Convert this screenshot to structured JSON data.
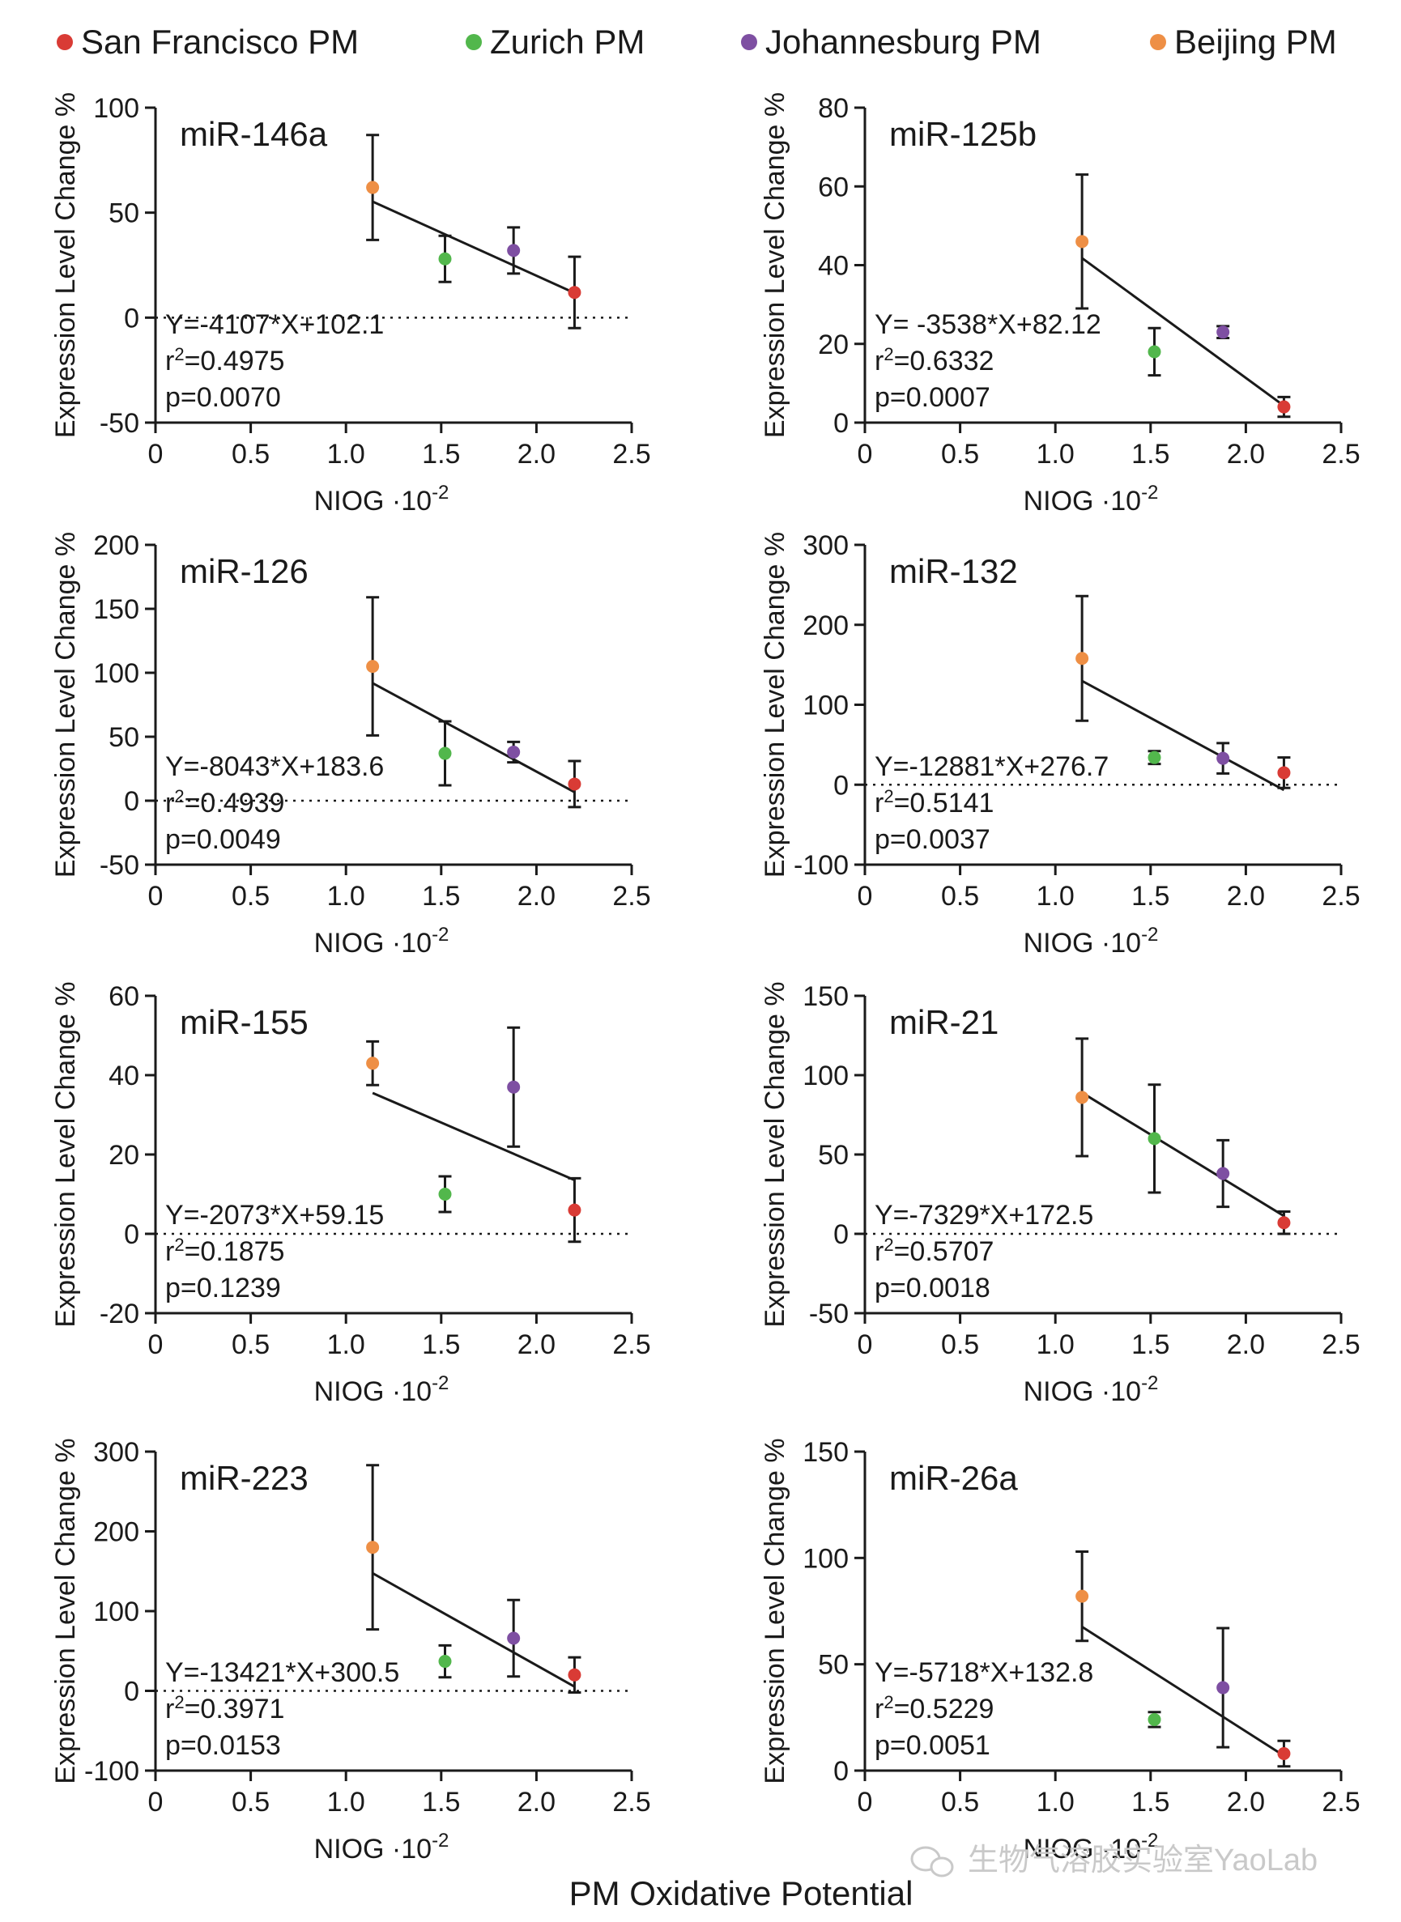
{
  "colors": {
    "san_francisco": "#d93b35",
    "zurich": "#52b74c",
    "johannesburg": "#7e4fa2",
    "beijing": "#ee8f45",
    "axis": "#1a1a1a",
    "watermark": "#c9c9c9"
  },
  "legend": [
    {
      "label": "San Francisco PM",
      "color_key": "san_francisco"
    },
    {
      "label": "Zurich PM",
      "color_key": "zurich"
    },
    {
      "label": "Johannesburg PM",
      "color_key": "johannesburg"
    },
    {
      "label": "Beijing PM",
      "color_key": "beijing"
    }
  ],
  "x_axis_title": "PM Oxidative Potential",
  "watermark": {
    "text": "生物气溶胶实验室YaoLab",
    "icon": "wechat-icon"
  },
  "chart_data": [
    {
      "type": "scatter",
      "title": "miR-146a",
      "xlabel": "NIOG ·10",
      "xlabel_sup": "-2",
      "ylabel": "Expression Level Change %",
      "xlim": [
        0,
        2.5
      ],
      "ylim": [
        -50,
        100
      ],
      "xticks": [
        "0",
        "0.5",
        "1.0",
        "1.5",
        "2.0",
        "2.5"
      ],
      "xtick_values": [
        0,
        0.5,
        1.0,
        1.5,
        2.0,
        2.5
      ],
      "yticks": [
        "-50",
        "0",
        "50",
        "100"
      ],
      "ytick_values": [
        -50,
        0,
        50,
        100
      ],
      "dotted_zero_line": true,
      "points": [
        {
          "city": "beijing",
          "x": 1.14,
          "y": 62,
          "err": 25
        },
        {
          "city": "zurich",
          "x": 1.52,
          "y": 28,
          "err": 11
        },
        {
          "city": "johannesburg",
          "x": 1.88,
          "y": 32,
          "err": 11
        },
        {
          "city": "san_francisco",
          "x": 2.2,
          "y": 12,
          "err": 17
        }
      ],
      "fit": {
        "slope": -4107,
        "intercept": 102.1,
        "x_range": [
          1.14,
          2.2
        ]
      },
      "annotation": {
        "equation": "Y=-4107*X+102.1",
        "r2_prefix": "r",
        "r2_sup": "2",
        "r2_value": "=0.4975",
        "p": "p=0.0070"
      }
    },
    {
      "type": "scatter",
      "title": "miR-125b",
      "xlabel": "NIOG ·10",
      "xlabel_sup": "-2",
      "ylabel": "Expression Level Change %",
      "xlim": [
        0,
        2.5
      ],
      "ylim": [
        0,
        80
      ],
      "xticks": [
        "0",
        "0.5",
        "1.0",
        "1.5",
        "2.0",
        "2.5"
      ],
      "xtick_values": [
        0,
        0.5,
        1.0,
        1.5,
        2.0,
        2.5
      ],
      "yticks": [
        "0",
        "20",
        "40",
        "60",
        "80"
      ],
      "ytick_values": [
        0,
        20,
        40,
        60,
        80
      ],
      "dotted_zero_line": false,
      "points": [
        {
          "city": "beijing",
          "x": 1.14,
          "y": 46,
          "err": 17
        },
        {
          "city": "zurich",
          "x": 1.52,
          "y": 18,
          "err": 6
        },
        {
          "city": "johannesburg",
          "x": 1.88,
          "y": 23,
          "err": 1.5
        },
        {
          "city": "san_francisco",
          "x": 2.2,
          "y": 4,
          "err": 2.5
        }
      ],
      "fit": {
        "slope": -3538,
        "intercept": 82.12,
        "x_range": [
          1.14,
          2.2
        ]
      },
      "annotation": {
        "equation": "Y= -3538*X+82.12",
        "r2_prefix": "r",
        "r2_sup": "2",
        "r2_value": "=0.6332",
        "p": "p=0.0007"
      }
    },
    {
      "type": "scatter",
      "title": "miR-126",
      "xlabel": "NIOG ·10",
      "xlabel_sup": "-2",
      "ylabel": "Expression Level Change %",
      "xlim": [
        0,
        2.5
      ],
      "ylim": [
        -50,
        200
      ],
      "xticks": [
        "0",
        "0.5",
        "1.0",
        "1.5",
        "2.0",
        "2.5"
      ],
      "xtick_values": [
        0,
        0.5,
        1.0,
        1.5,
        2.0,
        2.5
      ],
      "yticks": [
        "-50",
        "0",
        "50",
        "100",
        "150",
        "200"
      ],
      "ytick_values": [
        -50,
        0,
        50,
        100,
        150,
        200
      ],
      "dotted_zero_line": true,
      "points": [
        {
          "city": "beijing",
          "x": 1.14,
          "y": 105,
          "err": 54
        },
        {
          "city": "zurich",
          "x": 1.52,
          "y": 37,
          "err": 25
        },
        {
          "city": "johannesburg",
          "x": 1.88,
          "y": 38,
          "err": 8
        },
        {
          "city": "san_francisco",
          "x": 2.2,
          "y": 13,
          "err": 18
        }
      ],
      "fit": {
        "slope": -8043,
        "intercept": 183.6,
        "x_range": [
          1.14,
          2.2
        ]
      },
      "annotation": {
        "equation": "Y=-8043*X+183.6",
        "r2_prefix": "r",
        "r2_sup": "2",
        "r2_value": "=0.4939",
        "p": "p=0.0049"
      }
    },
    {
      "type": "scatter",
      "title": "miR-132",
      "xlabel": "NIOG ·10",
      "xlabel_sup": "-2",
      "ylabel": "Expression Level Change %",
      "xlim": [
        0,
        2.5
      ],
      "ylim": [
        -100,
        300
      ],
      "xticks": [
        "0",
        "0.5",
        "1.0",
        "1.5",
        "2.0",
        "2.5"
      ],
      "xtick_values": [
        0,
        0.5,
        1.0,
        1.5,
        2.0,
        2.5
      ],
      "yticks": [
        "-100",
        "0",
        "100",
        "200",
        "300"
      ],
      "ytick_values": [
        -100,
        0,
        100,
        200,
        300
      ],
      "dotted_zero_line": true,
      "points": [
        {
          "city": "beijing",
          "x": 1.14,
          "y": 158,
          "err": 78
        },
        {
          "city": "zurich",
          "x": 1.52,
          "y": 34,
          "err": 8
        },
        {
          "city": "johannesburg",
          "x": 1.88,
          "y": 33,
          "err": 19
        },
        {
          "city": "san_francisco",
          "x": 2.2,
          "y": 15,
          "err": 19
        }
      ],
      "fit": {
        "slope": -12881,
        "intercept": 276.7,
        "x_range": [
          1.14,
          2.2
        ]
      },
      "annotation": {
        "equation": "Y=-12881*X+276.7",
        "r2_prefix": "r",
        "r2_sup": "2",
        "r2_value": "=0.5141",
        "p": "p=0.0037"
      }
    },
    {
      "type": "scatter",
      "title": "miR-155",
      "xlabel": "NIOG ·10",
      "xlabel_sup": "-2",
      "ylabel": "Expression Level Change %",
      "xlim": [
        0,
        2.5
      ],
      "ylim": [
        -20,
        60
      ],
      "xticks": [
        "0",
        "0.5",
        "1.0",
        "1.5",
        "2.0",
        "2.5"
      ],
      "xtick_values": [
        0,
        0.5,
        1.0,
        1.5,
        2.0,
        2.5
      ],
      "yticks": [
        "-20",
        "0",
        "20",
        "40",
        "60"
      ],
      "ytick_values": [
        -20,
        0,
        20,
        40,
        60
      ],
      "dotted_zero_line": true,
      "points": [
        {
          "city": "beijing",
          "x": 1.14,
          "y": 43,
          "err": 5.5
        },
        {
          "city": "zurich",
          "x": 1.52,
          "y": 10,
          "err": 4.5
        },
        {
          "city": "johannesburg",
          "x": 1.88,
          "y": 37,
          "err": 15
        },
        {
          "city": "san_francisco",
          "x": 2.2,
          "y": 6,
          "err": 8
        }
      ],
      "fit": {
        "slope": -2073,
        "intercept": 59.15,
        "x_range": [
          1.14,
          2.2
        ]
      },
      "annotation": {
        "equation": "Y=-2073*X+59.15",
        "r2_prefix": "r",
        "r2_sup": "2",
        "r2_value": "=0.1875",
        "p": "p=0.1239"
      }
    },
    {
      "type": "scatter",
      "title": "miR-21",
      "xlabel": "NIOG ·10",
      "xlabel_sup": "-2",
      "ylabel": "Expression Level Change %",
      "xlim": [
        0,
        2.5
      ],
      "ylim": [
        -50,
        150
      ],
      "xticks": [
        "0",
        "0.5",
        "1.0",
        "1.5",
        "2.0",
        "2.5"
      ],
      "xtick_values": [
        0,
        0.5,
        1.0,
        1.5,
        2.0,
        2.5
      ],
      "yticks": [
        "-50",
        "0",
        "50",
        "100",
        "150"
      ],
      "ytick_values": [
        -50,
        0,
        50,
        100,
        150
      ],
      "dotted_zero_line": true,
      "points": [
        {
          "city": "beijing",
          "x": 1.14,
          "y": 86,
          "err": 37
        },
        {
          "city": "zurich",
          "x": 1.52,
          "y": 60,
          "err": 34
        },
        {
          "city": "johannesburg",
          "x": 1.88,
          "y": 38,
          "err": 21
        },
        {
          "city": "san_francisco",
          "x": 2.2,
          "y": 7,
          "err": 7
        }
      ],
      "fit": {
        "slope": -7329,
        "intercept": 172.5,
        "x_range": [
          1.14,
          2.2
        ]
      },
      "annotation": {
        "equation": "Y=-7329*X+172.5",
        "r2_prefix": "r",
        "r2_sup": "2",
        "r2_value": "=0.5707",
        "p": "p=0.0018"
      }
    },
    {
      "type": "scatter",
      "title": "miR-223",
      "xlabel": "NIOG ·10",
      "xlabel_sup": "-2",
      "ylabel": "Expression Level Change %",
      "xlim": [
        0,
        2.5
      ],
      "ylim": [
        -100,
        300
      ],
      "xticks": [
        "0",
        "0.5",
        "1.0",
        "1.5",
        "2.0",
        "2.5"
      ],
      "xtick_values": [
        0,
        0.5,
        1.0,
        1.5,
        2.0,
        2.5
      ],
      "yticks": [
        "-100",
        "0",
        "100",
        "200",
        "300"
      ],
      "ytick_values": [
        -100,
        0,
        100,
        200,
        300
      ],
      "dotted_zero_line": true,
      "points": [
        {
          "city": "beijing",
          "x": 1.14,
          "y": 180,
          "err": 103
        },
        {
          "city": "zurich",
          "x": 1.52,
          "y": 37,
          "err": 20
        },
        {
          "city": "johannesburg",
          "x": 1.88,
          "y": 66,
          "err": 48
        },
        {
          "city": "san_francisco",
          "x": 2.2,
          "y": 20,
          "err": 22
        }
      ],
      "fit": {
        "slope": -13421,
        "intercept": 300.5,
        "x_range": [
          1.14,
          2.2
        ]
      },
      "annotation": {
        "equation": "Y=-13421*X+300.5",
        "r2_prefix": "r",
        "r2_sup": "2",
        "r2_value": "=0.3971",
        "p": "p=0.0153"
      }
    },
    {
      "type": "scatter",
      "title": "miR-26a",
      "xlabel": "NIOG ·10",
      "xlabel_sup": "-2",
      "ylabel": "Expression Level Change %",
      "xlim": [
        0,
        2.5
      ],
      "ylim": [
        0,
        150
      ],
      "xticks": [
        "0",
        "0.5",
        "1.0",
        "1.5",
        "2.0",
        "2.5"
      ],
      "xtick_values": [
        0,
        0.5,
        1.0,
        1.5,
        2.0,
        2.5
      ],
      "yticks": [
        "0",
        "50",
        "100",
        "150"
      ],
      "ytick_values": [
        0,
        50,
        100,
        150
      ],
      "dotted_zero_line": false,
      "points": [
        {
          "city": "beijing",
          "x": 1.14,
          "y": 82,
          "err": 21
        },
        {
          "city": "zurich",
          "x": 1.52,
          "y": 24,
          "err": 3.5
        },
        {
          "city": "johannesburg",
          "x": 1.88,
          "y": 39,
          "err": 28
        },
        {
          "city": "san_francisco",
          "x": 2.2,
          "y": 8,
          "err": 6
        }
      ],
      "fit": {
        "slope": -5718,
        "intercept": 132.8,
        "x_range": [
          1.14,
          2.2
        ]
      },
      "annotation": {
        "equation": "Y=-5718*X+132.8",
        "r2_prefix": "r",
        "r2_sup": "2",
        "r2_value": "=0.5229",
        "p": "p=0.0051"
      }
    }
  ]
}
